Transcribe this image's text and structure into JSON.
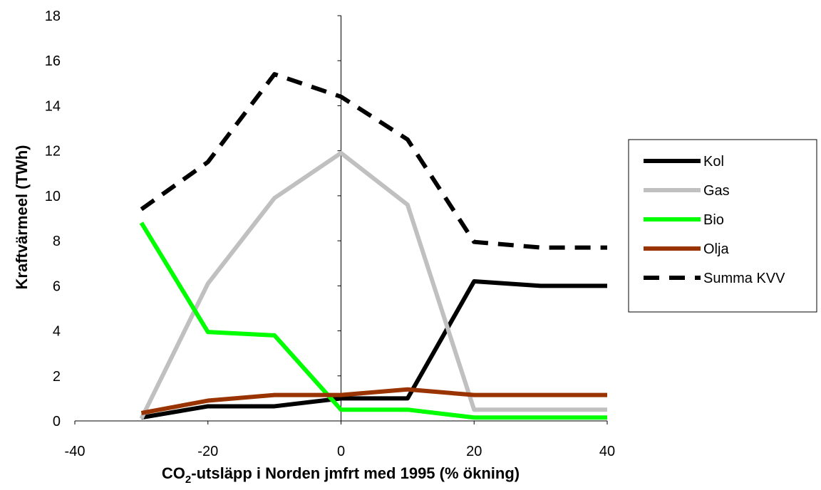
{
  "chart_data": {
    "type": "line",
    "xlabel": "CO2-utsläpp i Norden jmfrt med 1995 (% ökning)",
    "xlabel_parts": {
      "before": "CO",
      "sub": "2",
      "after": "-utsläpp i Norden jmfrt med 1995 (% ökning)"
    },
    "ylabel": "Kraftvärmeel (TWh)",
    "xlim": [
      -40,
      40
    ],
    "ylim": [
      0,
      18
    ],
    "xticks": [
      -40,
      -20,
      0,
      20,
      40
    ],
    "yticks": [
      0,
      2,
      4,
      6,
      8,
      10,
      12,
      14,
      16,
      18
    ],
    "grid": false,
    "legend_position": "right",
    "x": [
      -30,
      -20,
      -10,
      0,
      10,
      20,
      30,
      40
    ],
    "series": [
      {
        "name": "Kol",
        "color": "#000000",
        "dash": "solid",
        "values": [
          0.15,
          0.65,
          0.65,
          1.0,
          1.0,
          6.2,
          6.0,
          6.0
        ]
      },
      {
        "name": "Gas",
        "color": "#c0c0c0",
        "dash": "solid",
        "values": [
          0.1,
          6.1,
          9.9,
          11.9,
          9.6,
          0.5,
          0.5,
          0.5
        ]
      },
      {
        "name": "Bio",
        "color": "#00ff00",
        "dash": "solid",
        "values": [
          8.8,
          3.95,
          3.8,
          0.5,
          0.5,
          0.15,
          0.15,
          0.15
        ]
      },
      {
        "name": "Olja",
        "color": "#993300",
        "dash": "solid",
        "values": [
          0.35,
          0.9,
          1.15,
          1.15,
          1.4,
          1.15,
          1.15,
          1.15
        ]
      },
      {
        "name": "Summa KVV",
        "color": "#000000",
        "dash": "dashed",
        "values": [
          9.4,
          11.5,
          15.4,
          14.4,
          12.5,
          7.95,
          7.7,
          7.7
        ]
      }
    ]
  }
}
